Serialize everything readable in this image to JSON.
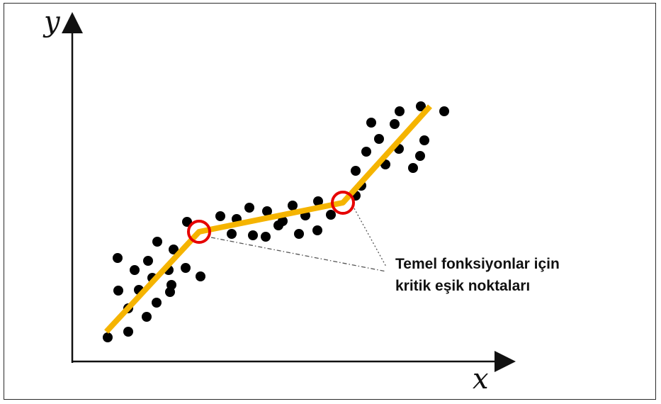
{
  "diagram": {
    "y_axis_label": "y",
    "x_axis_label": "x",
    "annotation": {
      "line1": "Temel fonksiyonlar için",
      "line2": "kritik eşik noktaları"
    },
    "colors": {
      "points": "#000000",
      "fit_line": "#f5b400",
      "breakpoints": "#e60000",
      "axes": "#111111",
      "leader_lines": "#555555"
    },
    "segments_count": 3,
    "breakpoints_count": 2
  }
}
